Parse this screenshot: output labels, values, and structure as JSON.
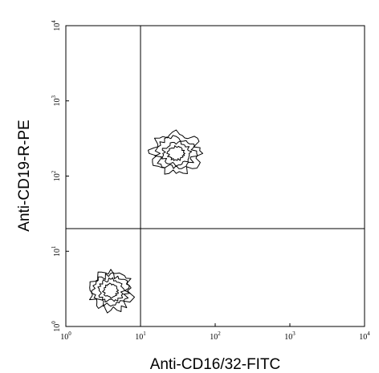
{
  "chart_data": {
    "type": "contour",
    "title": "",
    "xlabel": "Anti-CD16/32-FITC",
    "ylabel": "Anti-CD19-R-PE",
    "x_scale": "log",
    "y_scale": "log",
    "xlim": [
      1,
      10000
    ],
    "ylim": [
      1,
      10000
    ],
    "x_ticks": [
      {
        "value": 1,
        "base": "10",
        "exp": "0"
      },
      {
        "value": 10,
        "base": "10",
        "exp": "1"
      },
      {
        "value": 100,
        "base": "10",
        "exp": "2"
      },
      {
        "value": 1000,
        "base": "10",
        "exp": "3"
      },
      {
        "value": 10000,
        "base": "10",
        "exp": "4"
      }
    ],
    "y_ticks": [
      {
        "value": 1,
        "base": "10",
        "exp": "0"
      },
      {
        "value": 10,
        "base": "10",
        "exp": "1"
      },
      {
        "value": 100,
        "base": "10",
        "exp": "2"
      },
      {
        "value": 1000,
        "base": "10",
        "exp": "3"
      },
      {
        "value": 10000,
        "base": "10",
        "exp": "4"
      }
    ],
    "quadrant_gates": {
      "x": 10,
      "y": 20
    },
    "populations": [
      {
        "quadrant": "lower-left",
        "center": [
          4,
          3
        ],
        "spread": [
          0.28,
          0.26
        ],
        "levels": 4
      },
      {
        "quadrant": "upper-right",
        "center": [
          30,
          200
        ],
        "spread": [
          0.32,
          0.26
        ],
        "levels": 4
      }
    ],
    "grid": false,
    "legend": "none"
  }
}
